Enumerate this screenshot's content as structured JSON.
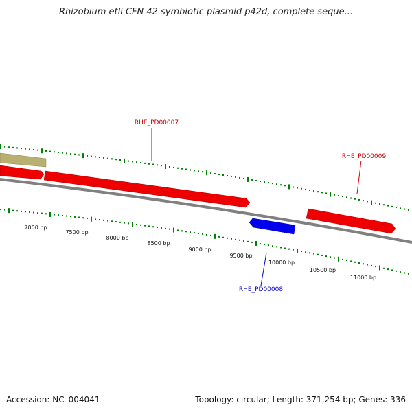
{
  "title": "Rhizobium etli CFN 42 symbiotic plasmid p42d, complete seque...",
  "footer": {
    "accession": "Accession: NC_004041",
    "summary": "Topology: circular; Length: 371,254 bp; Genes: 336"
  },
  "colors": {
    "forward_gene": "#ee0000",
    "reverse_gene": "#0000ee",
    "other_feature": "#b8b070",
    "backbone": "#808080",
    "tick": "#008000",
    "forward_label": "#cc0000",
    "reverse_label": "#0000cc"
  },
  "ticks": [
    {
      "label": "7000 bp"
    },
    {
      "label": "7500 bp"
    },
    {
      "label": "8000 bp"
    },
    {
      "label": "8500 bp"
    },
    {
      "label": "9000 bp"
    },
    {
      "label": "9500 bp"
    },
    {
      "label": "10000 bp"
    },
    {
      "label": "10500 bp"
    },
    {
      "label": "11000 bp"
    }
  ],
  "genes": [
    {
      "name": "",
      "strand": "forward",
      "kind": "other"
    },
    {
      "name": "",
      "strand": "forward",
      "kind": "gene"
    },
    {
      "name": "RHE_PD00007",
      "strand": "forward",
      "kind": "gene"
    },
    {
      "name": "RHE_PD00008",
      "strand": "reverse",
      "kind": "gene"
    },
    {
      "name": "RHE_PD00009",
      "strand": "forward",
      "kind": "gene"
    }
  ]
}
